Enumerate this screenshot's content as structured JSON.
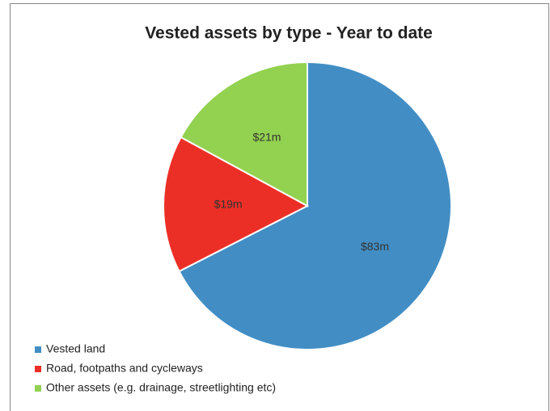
{
  "chart_data": {
    "type": "pie",
    "title": "Vested assets by type - Year to date",
    "categories": [
      "Vested land",
      "Road, footpaths and cycleways",
      "Other assets (e.g. drainage, streetlighting etc)"
    ],
    "values": [
      83,
      19,
      21
    ],
    "value_labels": [
      "$83m",
      "$19m",
      "$21m"
    ],
    "colors": [
      "#428ec4",
      "#ec2f26",
      "#93d150"
    ],
    "legend": "bottom-left"
  }
}
